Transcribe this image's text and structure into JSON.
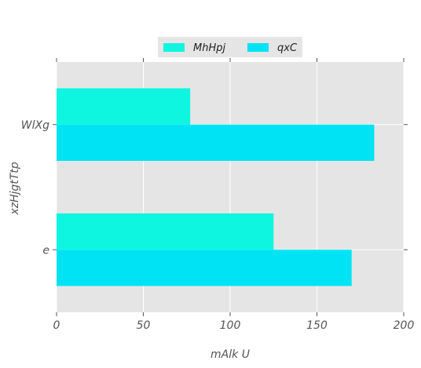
{
  "chart_data": {
    "type": "bar",
    "orientation": "horizontal",
    "categories": [
      "WlXg",
      "e"
    ],
    "series": [
      {
        "name": "MhHpj",
        "values": [
          77,
          125
        ],
        "color": "#0ef5e0"
      },
      {
        "name": "qxC",
        "values": [
          183,
          170
        ],
        "color": "#00e3f5"
      }
    ],
    "xlabel": "mAlk U",
    "ylabel": "xzHjgtTtp",
    "xlim": [
      0,
      200
    ],
    "xticks": [
      0,
      50,
      100,
      150,
      200
    ],
    "grid": true,
    "legend_position": "top-center",
    "background_color": "#e5e5e5",
    "grid_color": "#ffffff"
  }
}
